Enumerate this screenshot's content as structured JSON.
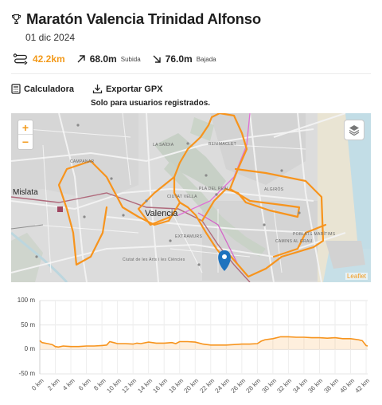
{
  "header": {
    "title": "Maratón Valencia Trinidad Alfonso",
    "date": "01 dic 2024"
  },
  "stats": {
    "distance": "42.2km",
    "ascent_value": "68.0m",
    "ascent_label": "Subida",
    "descent_value": "76.0m",
    "descent_label": "Bajada"
  },
  "tools": {
    "calculator_label": "Calculadora",
    "export_label": "Exportar GPX",
    "export_note": "Solo para usuarios registrados."
  },
  "map": {
    "zoom_in": "+",
    "zoom_out": "−",
    "attribution": "Leaflet",
    "labels": {
      "valencia": "Valencia",
      "mislata": "Mislata",
      "campanar": "CAMPANAR",
      "la_saidia": "LA SAÏDIA",
      "benimaclet": "BENIMACLET",
      "pla_del_real": "PLA DEL REAL",
      "algiros": "ALGIRÓS",
      "ciutat_vella": "CIUTAT VELLA",
      "extramurs": "EXTRAMURS",
      "camins": "CAMINS AL GRAU",
      "poblats": "POBLATS MARÍTIMS",
      "ciutat_arts": "Ciutat de les Arts i les Ciències"
    }
  },
  "colors": {
    "accent": "#f39a1b",
    "route": "#f7941d",
    "marker": "#1e73be"
  },
  "chart_data": {
    "type": "area",
    "x_unit": "km",
    "y_unit": "m",
    "x_ticks": [
      "0 km",
      "2 km",
      "4 km",
      "6 km",
      "8 km",
      "10 km",
      "12 km",
      "14 km",
      "16 km",
      "18 km",
      "20 km",
      "22 km",
      "24 km",
      "26 km",
      "28 km",
      "30 km",
      "32 km",
      "34 km",
      "36 km",
      "38 km",
      "40 km",
      "42 km"
    ],
    "y_ticks": [
      "100 m",
      "50 m",
      "0 m",
      "-50 m"
    ],
    "ylim": [
      -50,
      100
    ],
    "xlim": [
      0,
      42.2
    ],
    "grid": true,
    "series": [
      {
        "x": [
          0,
          0.3,
          1,
          1.6,
          2,
          2.4,
          3,
          4,
          5,
          6,
          7,
          8,
          8.6,
          9,
          9.5,
          10,
          11,
          12,
          12.5,
          13,
          14,
          15,
          16,
          17,
          17.5,
          18,
          19,
          20,
          21,
          22,
          23,
          24,
          25,
          26,
          27,
          28,
          28.5,
          29,
          30,
          31,
          32,
          33,
          34,
          35,
          36,
          37,
          38,
          39,
          40,
          41,
          41.5,
          42,
          42.2
        ],
        "y": [
          18,
          14,
          12,
          10,
          6,
          5,
          7,
          6,
          6,
          7,
          7,
          8,
          9,
          16,
          14,
          12,
          12,
          11,
          13,
          12,
          15,
          13,
          13,
          14,
          12,
          16,
          16,
          15,
          11,
          9,
          9,
          9,
          10,
          11,
          11,
          12,
          17,
          20,
          22,
          26,
          26,
          25,
          25,
          24,
          24,
          23,
          24,
          22,
          22,
          20,
          18,
          8,
          7
        ]
      }
    ]
  }
}
